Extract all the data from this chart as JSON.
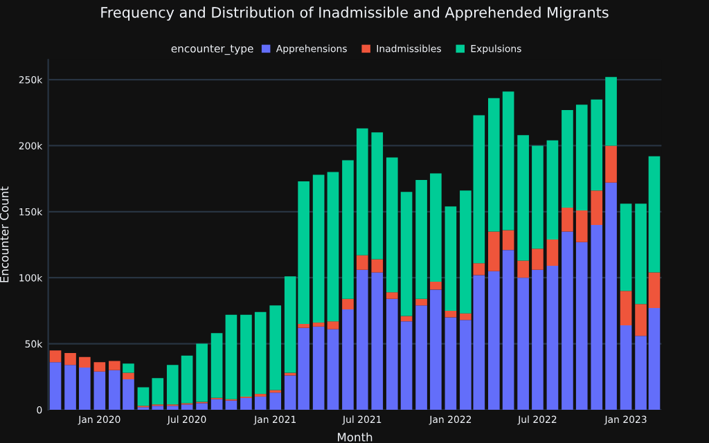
{
  "chart_data": {
    "type": "bar",
    "stacked": true,
    "title": "Frequency and Distribution of Inadmissible and Apprehended Migrants",
    "xlabel": "Month",
    "ylabel": "Encounter Count",
    "legend_title": "encounter_type",
    "legend": "top",
    "grid": "y",
    "x": [
      "2019-10",
      "2019-11",
      "2019-12",
      "2020-01",
      "2020-02",
      "2020-03",
      "2020-04",
      "2020-05",
      "2020-06",
      "2020-07",
      "2020-08",
      "2020-09",
      "2020-10",
      "2020-11",
      "2020-12",
      "2021-01",
      "2021-02",
      "2021-03",
      "2021-04",
      "2021-05",
      "2021-06",
      "2021-07",
      "2021-08",
      "2021-09",
      "2021-10",
      "2021-11",
      "2021-12",
      "2022-01",
      "2022-02",
      "2022-03",
      "2022-04",
      "2022-05",
      "2022-06",
      "2022-07",
      "2022-08",
      "2022-09",
      "2022-10",
      "2022-11",
      "2022-12",
      "2023-01",
      "2023-02",
      "2023-03"
    ],
    "series": [
      {
        "name": "Apprehensions",
        "color": "#636efa",
        "values": [
          36000,
          34000,
          32000,
          29000,
          30000,
          23000,
          2000,
          3000,
          3000,
          4000,
          5000,
          8000,
          7000,
          9000,
          10000,
          13000,
          26000,
          62000,
          63000,
          61000,
          76000,
          106000,
          104000,
          84000,
          67000,
          79000,
          91000,
          70000,
          68000,
          102000,
          105000,
          121000,
          100000,
          106000,
          109000,
          135000,
          127000,
          140000,
          172000,
          64000,
          56000,
          77000
        ]
      },
      {
        "name": "Inadmissibles",
        "color": "#ef553b",
        "values": [
          9000,
          9000,
          8000,
          7000,
          7000,
          5000,
          1000,
          1000,
          1000,
          1000,
          1000,
          1000,
          1000,
          1000,
          2000,
          2000,
          2000,
          3000,
          3000,
          6000,
          8000,
          11000,
          10000,
          5000,
          4000,
          5000,
          6000,
          5000,
          5000,
          9000,
          30000,
          15000,
          13000,
          16000,
          20000,
          18000,
          24000,
          26000,
          28000,
          26000,
          24000,
          27000
        ]
      },
      {
        "name": "Expulsions",
        "color": "#00cc96",
        "values": [
          0,
          0,
          0,
          0,
          0,
          7000,
          14000,
          20000,
          30000,
          36000,
          44000,
          49000,
          64000,
          62000,
          62000,
          64000,
          73000,
          108000,
          112000,
          113000,
          105000,
          96000,
          96000,
          102000,
          94000,
          90000,
          82000,
          79000,
          93000,
          112000,
          101000,
          105000,
          95000,
          78000,
          75000,
          74000,
          80000,
          69000,
          52000,
          66000,
          76000,
          88000
        ]
      }
    ],
    "ylim": [
      0,
      265000
    ],
    "yticks": [
      0,
      {
        "value": 50000,
        "label": "50k"
      },
      {
        "value": 100000,
        "label": "100k"
      },
      {
        "value": 150000,
        "label": "150k"
      },
      {
        "value": 200000,
        "label": "200k"
      },
      {
        "value": 250000,
        "label": "250k"
      }
    ],
    "xlim": [
      "2019-09-16",
      "2023-03-16"
    ],
    "xticks": [
      {
        "value": "2020-01",
        "label": "Jan 2020"
      },
      {
        "value": "2020-07",
        "label": "Jul 2020"
      },
      {
        "value": "2021-01",
        "label": "Jan 2021"
      },
      {
        "value": "2021-07",
        "label": "Jul 2021"
      },
      {
        "value": "2022-01",
        "label": "Jan 2022"
      },
      {
        "value": "2022-07",
        "label": "Jul 2022"
      },
      {
        "value": "2023-01",
        "label": "Jan 2023"
      }
    ]
  }
}
